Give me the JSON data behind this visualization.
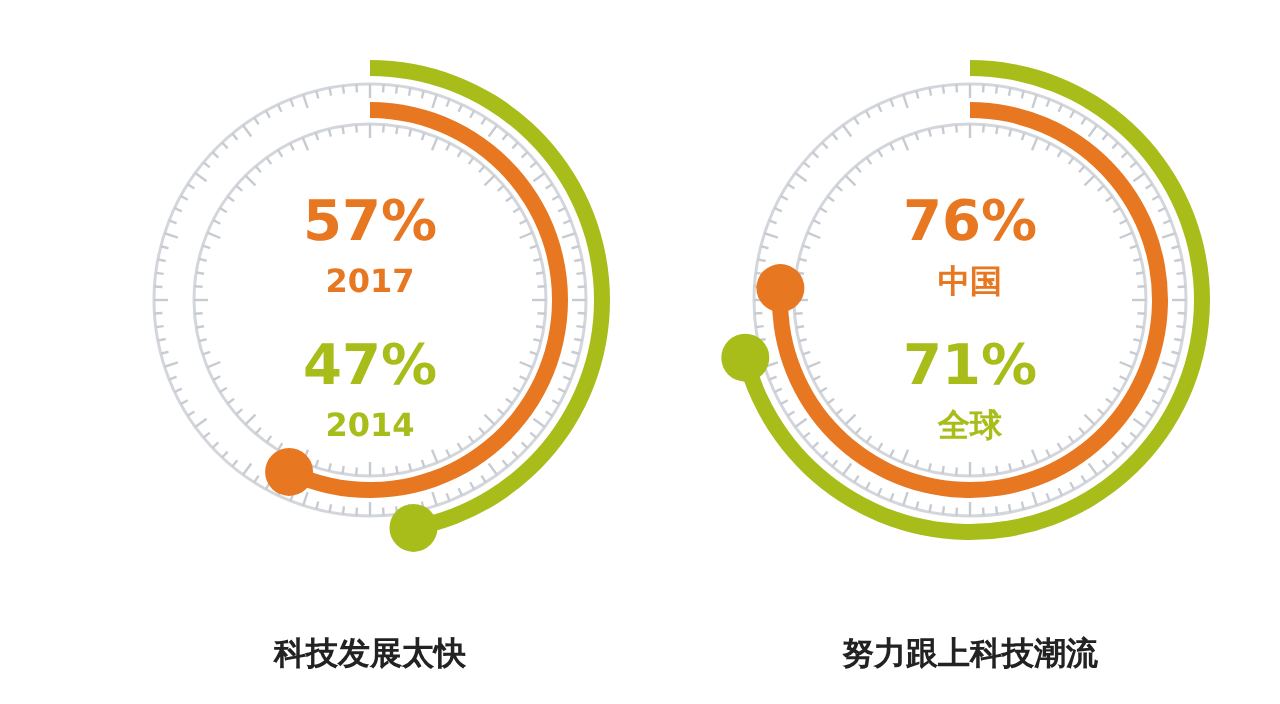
{
  "chart_data": [
    {
      "type": "other",
      "title": "科技发展太快",
      "categories": [
        "2017",
        "2014"
      ],
      "values": [
        57,
        47
      ],
      "value_labels": [
        "57%",
        "47%"
      ],
      "colors": [
        "#e87722",
        "#a8bd1a"
      ]
    },
    {
      "type": "other",
      "title": "努力跟上科技潮流",
      "categories": [
        "中国",
        "全球"
      ],
      "values": [
        76,
        71
      ],
      "value_labels": [
        "76%",
        "71%"
      ],
      "colors": [
        "#e87722",
        "#a8bd1a"
      ]
    }
  ]
}
